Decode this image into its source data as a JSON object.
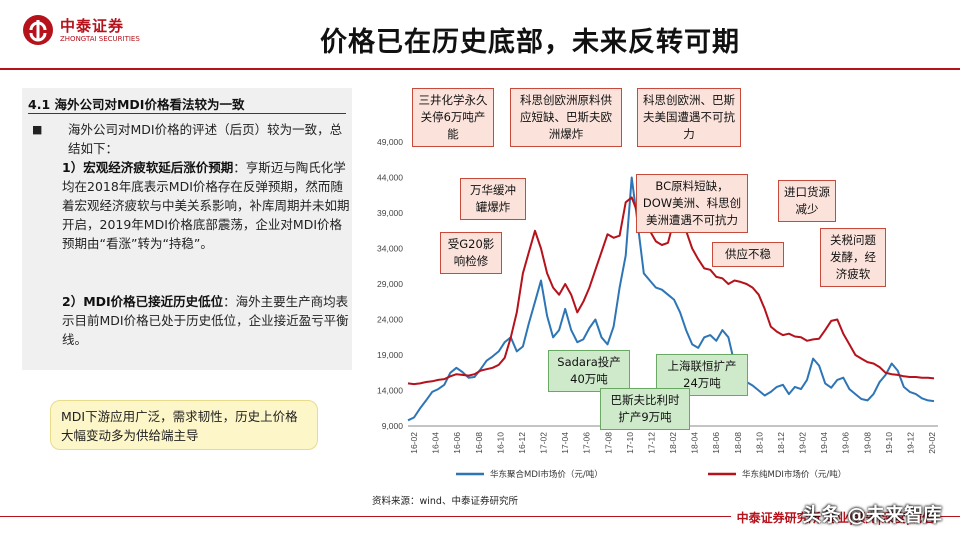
{
  "header": {
    "logo_cn": "中泰证券",
    "logo_en": "ZHONGTAI SECURITIES",
    "title": "价格已在历史底部，未来反转可期"
  },
  "left": {
    "section_head": "4.1 海外公司对MDI价格看法较为一致",
    "bullet_symbol": "■",
    "bullet_text": "海外公司对MDI价格的评述（后页）较为一致，总结如下：",
    "point1_head": "1）宏观经济疲软延后涨价预期",
    "point1_text": "：亨斯迈与陶氏化学均在2018年底表示MDI价格存在反弹预期，然而随着宏观经济疲软与中美关系影响，补库周期并未如期开启，2019年MDI价格底部震荡，企业对MDI价格预期由“看涨”转为“持稳”。",
    "point2_head": "2）MDI价格已接近历史低位",
    "point2_text": "：海外主要生产商均表示目前MDI价格已处于历史低位，企业接近盈亏平衡线。"
  },
  "note": "MDI下游应用广泛，需求韧性，历史上价格大幅变动多为供给端主导",
  "callouts": {
    "c1": "三井化学永久关停6万吨产能",
    "c2": "科思创欧洲原料供应短缺、巴斯夫欧洲爆炸",
    "c3": "科思创欧洲、巴斯夫美国遭遇不可抗力",
    "c4": "万华缓冲罐爆炸",
    "c5": "受G20影响检修",
    "c6": "BC原料短缺，DOW美洲、科思创美洲遭遇不可抗力",
    "c7": "进口货源减少",
    "c8": "供应不稳",
    "c9": "关税问题发酵，经济疲软",
    "g1": "Sadara投产40万吨",
    "g2": "上海联恒扩产24万吨",
    "g3": "巴斯夫比利时扩产9万吨"
  },
  "chart_data": {
    "type": "line",
    "ylim": [
      9000,
      49000
    ],
    "yticks": [
      "9,000",
      "14,000",
      "19,000",
      "24,000",
      "29,000",
      "34,000",
      "39,000",
      "44,000",
      "49,000"
    ],
    "xticks": [
      "16-02",
      "16-04",
      "16-06",
      "16-08",
      "16-10",
      "16-12",
      "17-02",
      "17-04",
      "17-06",
      "17-08",
      "17-10",
      "17-12",
      "18-02",
      "18-04",
      "18-06",
      "18-08",
      "18-10",
      "18-12",
      "19-02",
      "19-04",
      "19-06",
      "19-08",
      "19-10",
      "19-12",
      "20-02"
    ],
    "series": [
      {
        "name": "华东聚合MDI市场价（元/吨）",
        "color": "#2e75b6",
        "values": [
          9800,
          10200,
          11500,
          12600,
          13800,
          14200,
          14800,
          16500,
          17200,
          16600,
          15800,
          15900,
          17000,
          18200,
          18800,
          19500,
          20800,
          21500,
          19500,
          20200,
          23500,
          26500,
          29500,
          24500,
          21500,
          22500,
          25500,
          22500,
          20800,
          21200,
          22800,
          24000,
          21500,
          20500,
          23000,
          28500,
          33000,
          44000,
          37500,
          30500,
          29500,
          28500,
          28200,
          27500,
          26800,
          25000,
          22500,
          20500,
          20000,
          21500,
          21800,
          21000,
          22500,
          21500,
          17800,
          16400,
          15200,
          14700,
          14000,
          13300,
          13800,
          14500,
          14800,
          13500,
          14500,
          14200,
          15500,
          18500,
          17500,
          15000,
          14400,
          15500,
          15800,
          14200,
          13500,
          12800,
          12600,
          13500,
          15200,
          16200,
          17800,
          16800,
          14500,
          13800,
          13500,
          12900,
          12600,
          12500
        ]
      },
      {
        "name": "华东纯MDI市场价（元/吨）",
        "color": "#b5121b",
        "values": [
          15000,
          14900,
          15000,
          15200,
          15300,
          15500,
          15600,
          16000,
          16300,
          16200,
          16100,
          16300,
          16800,
          17000,
          17200,
          17600,
          18600,
          21500,
          25000,
          30500,
          33500,
          36500,
          34000,
          30500,
          28500,
          27500,
          29000,
          27500,
          25000,
          26500,
          28500,
          31000,
          33500,
          36000,
          35500,
          35800,
          40500,
          41200,
          39000,
          37500,
          36500,
          35000,
          34500,
          34800,
          38000,
          40500,
          36500,
          34000,
          32500,
          31200,
          31000,
          30000,
          29800,
          29000,
          29500,
          29300,
          29000,
          28500,
          27500,
          25500,
          23000,
          22300,
          21800,
          22000,
          21600,
          21500,
          21000,
          21200,
          21300,
          22500,
          23800,
          24000,
          22000,
          20500,
          19000,
          18500,
          18000,
          17800,
          17300,
          16500,
          16300,
          16200,
          16000,
          15900,
          15900,
          15800,
          15800,
          15700
        ]
      }
    ]
  },
  "source": "资料来源：wind、中泰证券研究所",
  "footer": "中泰证券研究所 专业|领先|深度|诚信",
  "watermark": "头条 @未来智库"
}
